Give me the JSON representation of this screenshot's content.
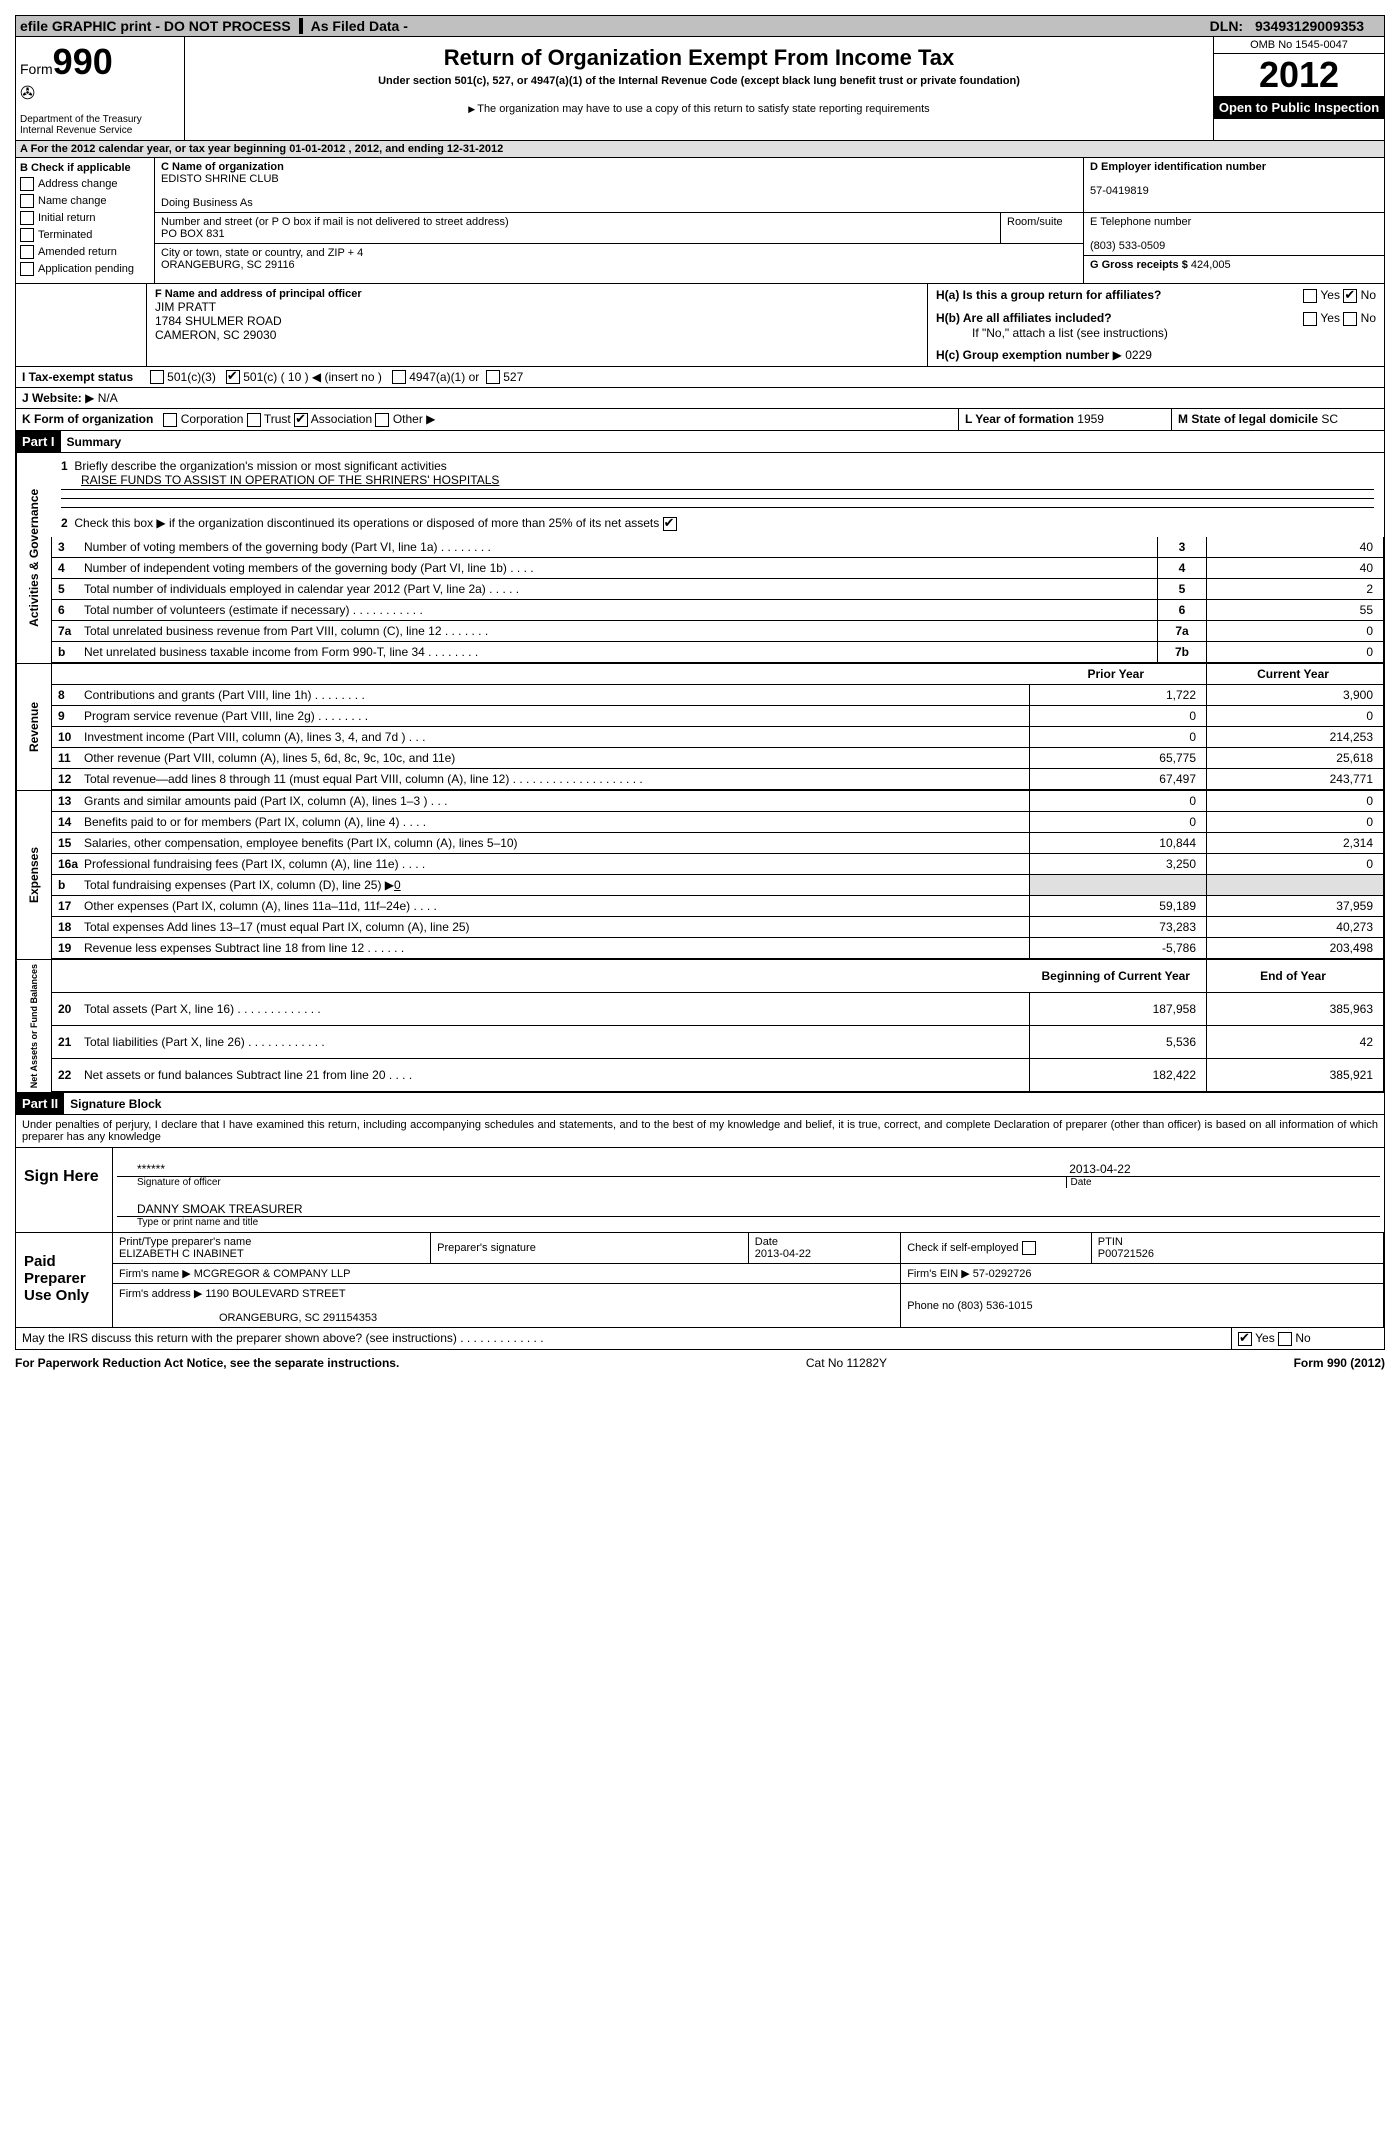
{
  "top_bar": {
    "efile": "efile GRAPHIC print - DO NOT PROCESS",
    "as_filed": "As Filed Data -",
    "dln_label": "DLN:",
    "dln": "93493129009353"
  },
  "header": {
    "form_label": "Form",
    "form_number": "990",
    "dept": "Department of the Treasury",
    "irs": "Internal Revenue Service",
    "title": "Return of Organization Exempt From Income Tax",
    "subtitle1": "Under section 501(c), 527, or 4947(a)(1) of the Internal Revenue Code (except black lung benefit trust or private foundation)",
    "subtitle2": "The organization may have to use a copy of this return to satisfy state reporting requirements",
    "omb": "OMB No 1545-0047",
    "year": "2012",
    "open": "Open to Public Inspection"
  },
  "section_a": "A For the 2012 calendar year, or tax year beginning 01-01-2012    , 2012, and ending 12-31-2012",
  "section_b": {
    "label": "B Check if applicable",
    "items": [
      "Address change",
      "Name change",
      "Initial return",
      "Terminated",
      "Amended return",
      "Application pending"
    ]
  },
  "section_c": {
    "label": "C Name of organization",
    "name": "EDISTO SHRINE CLUB",
    "dba_label": "Doing Business As",
    "street_label": "Number and street (or P O  box if mail is not delivered to street address)",
    "room_label": "Room/suite",
    "street": "PO BOX 831",
    "city_label": "City or town, state or country, and ZIP + 4",
    "city": "ORANGEBURG, SC  29116"
  },
  "section_d": {
    "label": "D Employer identification number",
    "value": "57-0419819"
  },
  "section_e": {
    "label": "E Telephone number",
    "value": "(803) 533-0509"
  },
  "section_g": {
    "label": "G Gross receipts $",
    "value": "424,005"
  },
  "section_f": {
    "label": "F   Name and address of principal officer",
    "name": "JIM PRATT",
    "addr1": "1784 SHULMER ROAD",
    "addr2": "CAMERON, SC  29030"
  },
  "section_h": {
    "ha": "H(a)  Is this a group return for affiliates?",
    "hb": "H(b)  Are all affiliates included?",
    "hb_note": "If \"No,\" attach a list  (see instructions)",
    "hc": "H(c)   Group exemption number",
    "hc_val": "0229",
    "yes": "Yes",
    "no": "No"
  },
  "section_i": {
    "label": "I   Tax-exempt status",
    "opts": [
      "501(c)(3)",
      "501(c) ( 10 )",
      "(insert no )",
      "4947(a)(1) or",
      "527"
    ]
  },
  "section_j": {
    "label": "J  Website:",
    "value": "N/A"
  },
  "section_k": {
    "label": "K Form of organization",
    "opts": [
      "Corporation",
      "Trust",
      "Association",
      "Other"
    ]
  },
  "section_l": {
    "label": "L Year of formation",
    "value": "1959"
  },
  "section_m": {
    "label": "M State of legal domicile",
    "value": "SC"
  },
  "part1": {
    "label": "Part I",
    "title": "Summary"
  },
  "summary": {
    "q1": "Briefly describe the organization's mission or most significant activities",
    "q1_val": "RAISE FUNDS TO ASSIST IN OPERATION OF THE SHRINERS' HOSPITALS",
    "q2": "Check this box ▶      if the organization discontinued its operations or disposed of more than 25% of its net assets",
    "vert1": "Activities & Governance",
    "vert2": "Revenue",
    "vert3": "Expenses",
    "vert4": "Net Assets or Fund Balances",
    "rows_gov": [
      {
        "n": "3",
        "label": "Number of voting members of the governing body (Part VI, line 1a)  .   .   .   .   .   .   .   .",
        "col": "3",
        "val": "40"
      },
      {
        "n": "4",
        "label": "Number of independent voting members of the governing body (Part VI, line 1b)  .   .   .   .",
        "col": "4",
        "val": "40"
      },
      {
        "n": "5",
        "label": "Total number of individuals employed in calendar year 2012 (Part V, line 2a)  .   .   .   .   .",
        "col": "5",
        "val": "2"
      },
      {
        "n": "6",
        "label": "Total number of volunteers (estimate if necessary)   .   .   .   .   .   .   .   .   .   .   .",
        "col": "6",
        "val": "55"
      },
      {
        "n": "7a",
        "label": "Total unrelated business revenue from Part VIII, column (C), line 12  .   .   .   .   .   .   .",
        "col": "7a",
        "val": "0"
      },
      {
        "n": "b",
        "label": "Net unrelated business taxable income from Form 990-T, line 34  .   .   .   .   .   .   .   .",
        "col": "7b",
        "val": "0"
      }
    ],
    "header_prior": "Prior Year",
    "header_current": "Current Year",
    "rows_rev": [
      {
        "n": "8",
        "label": "Contributions and grants (Part VIII, line 1h)   .   .   .   .   .   .   .   .",
        "p": "1,722",
        "c": "3,900"
      },
      {
        "n": "9",
        "label": "Program service revenue (Part VIII, line 2g)  .   .   .   .   .   .   .   .",
        "p": "0",
        "c": "0"
      },
      {
        "n": "10",
        "label": "Investment income (Part VIII, column (A), lines 3, 4, and 7d )  .   .   .",
        "p": "0",
        "c": "214,253"
      },
      {
        "n": "11",
        "label": "Other revenue (Part VIII, column (A), lines 5, 6d, 8c, 9c, 10c, and 11e)",
        "p": "65,775",
        "c": "25,618"
      },
      {
        "n": "12",
        "label": "Total revenue—add lines 8 through 11 (must equal Part VIII, column (A), line 12)  .   .   .   .   .   .   .   .   .   .   .   .   .   .   .   .   .   .   .   .",
        "p": "67,497",
        "c": "243,771"
      }
    ],
    "rows_exp": [
      {
        "n": "13",
        "label": "Grants and similar amounts paid (Part IX, column (A), lines 1–3 )  .   .   .",
        "p": "0",
        "c": "0"
      },
      {
        "n": "14",
        "label": "Benefits paid to or for members (Part IX, column (A), line 4)  .   .   .   .",
        "p": "0",
        "c": "0"
      },
      {
        "n": "15",
        "label": "Salaries, other compensation, employee benefits (Part IX, column (A), lines 5–10)",
        "p": "10,844",
        "c": "2,314"
      },
      {
        "n": "16a",
        "label": "Professional fundraising fees (Part IX, column (A), line 11e)  .   .   .   .",
        "p": "3,250",
        "c": "0"
      },
      {
        "n": "b",
        "label": "Total fundraising expenses (Part IX, column (D), line 25) ▶",
        "p": "",
        "c": "",
        "fund": "0"
      },
      {
        "n": "17",
        "label": "Other expenses (Part IX, column (A), lines 11a–11d, 11f–24e)  .   .   .   .",
        "p": "59,189",
        "c": "37,959"
      },
      {
        "n": "18",
        "label": "Total expenses  Add lines 13–17 (must equal Part IX, column (A), line 25)",
        "p": "73,283",
        "c": "40,273"
      },
      {
        "n": "19",
        "label": "Revenue less expenses  Subtract line 18 from line 12  .   .   .   .   .   .",
        "p": "-5,786",
        "c": "203,498"
      }
    ],
    "header_beg": "Beginning of Current Year",
    "header_end": "End of Year",
    "rows_net": [
      {
        "n": "20",
        "label": "Total assets (Part X, line 16)  .   .   .   .   .   .   .   .   .   .   .   .   .",
        "p": "187,958",
        "c": "385,963"
      },
      {
        "n": "21",
        "label": "Total liabilities (Part X, line 26)  .   .   .   .   .   .   .   .   .   .   .   .",
        "p": "5,536",
        "c": "42"
      },
      {
        "n": "22",
        "label": "Net assets or fund balances  Subtract line 21 from line 20  .   .   .   .",
        "p": "182,422",
        "c": "385,921"
      }
    ]
  },
  "part2": {
    "label": "Part II",
    "title": "Signature Block"
  },
  "perjury": "Under penalties of perjury, I declare that I have examined this return, including accompanying schedules and statements, and to the best of my knowledge and belief, it is true, correct, and complete  Declaration of preparer (other than officer) is based on all information of which preparer has any knowledge",
  "sign": {
    "label": "Sign Here",
    "stars": "******",
    "sig_label": "Signature of officer",
    "date": "2013-04-22",
    "date_label": "Date",
    "name": "DANNY SMOAK TREASURER",
    "name_label": "Type or print name and title"
  },
  "preparer": {
    "label": "Paid Preparer Use Only",
    "print_label": "Print/Type preparer's name",
    "print_name": "ELIZABETH C INABINET",
    "sig_label": "Preparer's signature",
    "date_label": "Date",
    "date": "2013-04-22",
    "check_label": "Check      if self-employed",
    "ptin_label": "PTIN",
    "ptin": "P00721526",
    "firm_name_label": "Firm's name    ▶",
    "firm_name": "MCGREGOR & COMPANY LLP",
    "firm_ein_label": "Firm's EIN ▶",
    "firm_ein": "57-0292726",
    "firm_addr_label": "Firm's address ▶",
    "firm_addr": "1190 BOULEVARD STREET",
    "firm_city": "ORANGEBURG, SC  291154353",
    "phone_label": "Phone no",
    "phone": "(803) 536-1015"
  },
  "discuss": "May the IRS discuss this return with the preparer shown above? (see instructions)   .   .   .   .   .   .   .   .   .   .   .   .   .",
  "footer": {
    "left": "For Paperwork Reduction Act Notice, see the separate instructions.",
    "center": "Cat No 11282Y",
    "right": "Form 990 (2012)"
  },
  "colors": {
    "black": "#000000",
    "gray": "#c0c0c0",
    "lightgray": "#e0e0e0"
  }
}
